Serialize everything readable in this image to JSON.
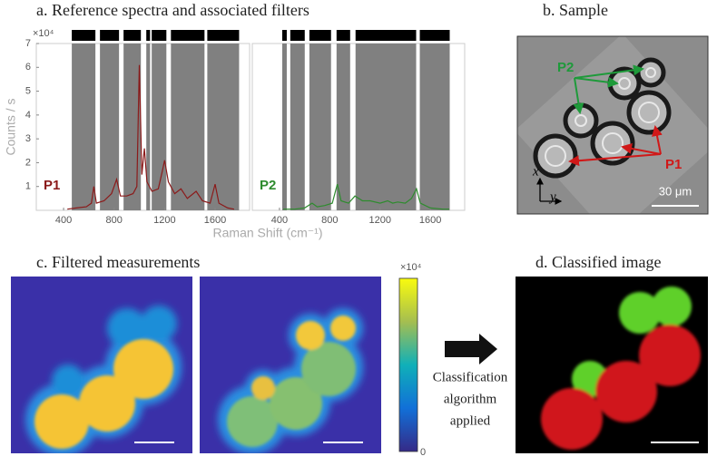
{
  "panel_a": {
    "title": "a. Reference spectra and associated filters",
    "y_label": "Counts / s",
    "x_label": "Raman Shift (cm⁻¹)",
    "y_scale_label": "×10⁴",
    "chart_data": [
      {
        "type": "line",
        "xlim": [
          184,
          1873
        ],
        "ylim": [
          0,
          7
        ],
        "xticks": [
          400,
          800,
          1200,
          1600
        ],
        "yticks": [
          1,
          2,
          3,
          4,
          5,
          6,
          7
        ],
        "filters": [
          [
            465,
            652
          ],
          [
            688,
            839
          ],
          [
            875,
            1012
          ],
          [
            1055,
            1085
          ],
          [
            1098,
            1214
          ],
          [
            1250,
            1516
          ],
          [
            1538,
            1790
          ]
        ],
        "filter_color": "#808080",
        "series": [
          {
            "name": "P1",
            "color": "#8b1a1a",
            "x": [
              430,
              500,
              580,
              620,
              640,
              660,
              720,
              780,
              820,
              850,
              900,
              950,
              980,
              1000,
              1020,
              1040,
              1060,
              1100,
              1150,
              1180,
              1200,
              1230,
              1280,
              1330,
              1380,
              1450,
              1500,
              1560,
              1600,
              1630,
              1700,
              1750
            ],
            "values": [
              0.05,
              0.1,
              0.15,
              0.3,
              1.0,
              0.3,
              0.4,
              0.7,
              1.3,
              0.6,
              0.6,
              0.7,
              1.0,
              6.1,
              1.5,
              2.6,
              1.2,
              0.8,
              0.9,
              1.6,
              2.1,
              1.2,
              0.7,
              0.9,
              0.5,
              0.8,
              0.4,
              0.3,
              1.1,
              0.3,
              0.1,
              0.05
            ]
          }
        ]
      },
      {
        "type": "line",
        "xlim": [
          184,
          1873
        ],
        "ylim": [
          0,
          7
        ],
        "xticks": [
          400,
          800,
          1200,
          1600
        ],
        "filters": [
          [
            422,
            458
          ],
          [
            486,
            601
          ],
          [
            638,
            810
          ],
          [
            854,
            962
          ],
          [
            1005,
            1487
          ],
          [
            1516,
            1754
          ]
        ],
        "filter_color": "#808080",
        "series": [
          {
            "name": "P2",
            "color": "#2e8b2e",
            "x": [
              430,
              520,
              600,
              660,
              700,
              760,
              820,
              860,
              890,
              950,
              1000,
              1060,
              1120,
              1200,
              1260,
              1300,
              1340,
              1400,
              1450,
              1490,
              1520,
              1600,
              1700,
              1750
            ],
            "values": [
              0.05,
              0.05,
              0.1,
              0.3,
              0.15,
              0.2,
              0.3,
              1.1,
              0.4,
              0.3,
              0.6,
              0.4,
              0.4,
              0.3,
              0.4,
              0.3,
              0.35,
              0.3,
              0.5,
              0.9,
              0.3,
              0.1,
              0.05,
              0.05
            ]
          }
        ]
      }
    ]
  },
  "panel_b": {
    "title": "b. Sample",
    "label_p2": "P2",
    "label_p1": "P1",
    "axis_x": "x",
    "axis_y": "y",
    "scale": "30 μm"
  },
  "panel_c": {
    "title": "c. Filtered measurements",
    "colorbar_label": "×10⁴",
    "colorbar_min": "0"
  },
  "arrow_text": [
    "Classification",
    "algorithm",
    "applied"
  ],
  "panel_d": {
    "title": "d. Classified image"
  }
}
